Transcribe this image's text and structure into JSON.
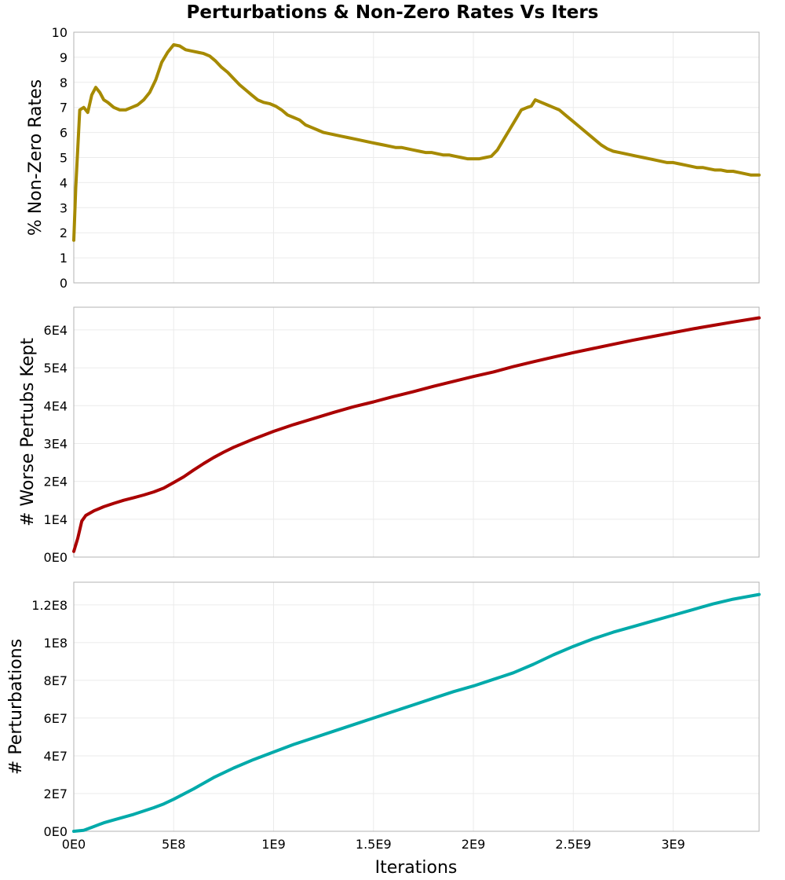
{
  "title": "Perturbations & Non-Zero Rates Vs Iters",
  "xlabel": "Iterations",
  "chart_data": [
    {
      "type": "line",
      "ylabel": "% Non-Zero Rates",
      "xlim": [
        0,
        3430000000
      ],
      "ylim": [
        0,
        10
      ],
      "x_ticks": [
        0,
        500000000,
        1000000000,
        1500000000,
        2000000000,
        2500000000,
        3000000000
      ],
      "y_ticks": [
        0,
        1,
        2,
        3,
        4,
        5,
        6,
        7,
        8,
        9,
        10
      ],
      "y_tick_labels": [
        "0",
        "1",
        "2",
        "3",
        "4",
        "5",
        "6",
        "7",
        "8",
        "9",
        "10"
      ],
      "grid": true,
      "color": "#a68a00",
      "series": [
        {
          "x": [
            0,
            10000000,
            30000000,
            50000000,
            70000000,
            90000000,
            110000000,
            130000000,
            150000000,
            170000000,
            200000000,
            230000000,
            260000000,
            290000000,
            320000000,
            350000000,
            380000000,
            410000000,
            440000000,
            470000000,
            500000000,
            530000000,
            560000000,
            590000000,
            620000000,
            650000000,
            680000000,
            710000000,
            740000000,
            770000000,
            800000000,
            830000000,
            860000000,
            890000000,
            920000000,
            950000000,
            980000000,
            1010000000,
            1040000000,
            1070000000,
            1100000000,
            1130000000,
            1160000000,
            1190000000,
            1220000000,
            1250000000,
            1280000000,
            1310000000,
            1340000000,
            1370000000,
            1400000000,
            1430000000,
            1460000000,
            1490000000,
            1520000000,
            1550000000,
            1580000000,
            1610000000,
            1640000000,
            1670000000,
            1700000000,
            1730000000,
            1760000000,
            1790000000,
            1820000000,
            1850000000,
            1880000000,
            1910000000,
            1940000000,
            1970000000,
            2000000000,
            2030000000,
            2060000000,
            2090000000,
            2120000000,
            2150000000,
            2180000000,
            2210000000,
            2240000000,
            2270000000,
            2290000000,
            2310000000,
            2340000000,
            2370000000,
            2400000000,
            2430000000,
            2460000000,
            2490000000,
            2520000000,
            2550000000,
            2580000000,
            2610000000,
            2640000000,
            2670000000,
            2700000000,
            2730000000,
            2760000000,
            2790000000,
            2820000000,
            2850000000,
            2880000000,
            2910000000,
            2940000000,
            2970000000,
            3000000000,
            3030000000,
            3060000000,
            3090000000,
            3120000000,
            3150000000,
            3180000000,
            3210000000,
            3240000000,
            3270000000,
            3300000000,
            3330000000,
            3360000000,
            3390000000,
            3430000000
          ],
          "y": [
            1.7,
            3.8,
            6.9,
            7.0,
            6.8,
            7.5,
            7.8,
            7.6,
            7.3,
            7.2,
            7.0,
            6.9,
            6.9,
            7.0,
            7.1,
            7.3,
            7.6,
            8.1,
            8.8,
            9.2,
            9.5,
            9.45,
            9.3,
            9.25,
            9.2,
            9.15,
            9.05,
            8.85,
            8.6,
            8.4,
            8.15,
            7.9,
            7.7,
            7.5,
            7.3,
            7.2,
            7.15,
            7.05,
            6.9,
            6.7,
            6.6,
            6.5,
            6.3,
            6.2,
            6.1,
            6.0,
            5.95,
            5.9,
            5.85,
            5.8,
            5.75,
            5.7,
            5.65,
            5.6,
            5.55,
            5.5,
            5.45,
            5.4,
            5.4,
            5.35,
            5.3,
            5.25,
            5.2,
            5.2,
            5.15,
            5.1,
            5.1,
            5.05,
            5.0,
            4.95,
            4.95,
            4.95,
            5.0,
            5.05,
            5.3,
            5.7,
            6.1,
            6.5,
            6.9,
            7.0,
            7.05,
            7.3,
            7.2,
            7.1,
            7.0,
            6.9,
            6.7,
            6.5,
            6.3,
            6.1,
            5.9,
            5.7,
            5.5,
            5.35,
            5.25,
            5.2,
            5.15,
            5.1,
            5.05,
            5.0,
            4.95,
            4.9,
            4.85,
            4.8,
            4.8,
            4.75,
            4.7,
            4.65,
            4.6,
            4.6,
            4.55,
            4.5,
            4.5,
            4.45,
            4.45,
            4.4,
            4.35,
            4.3,
            4.3
          ]
        }
      ]
    },
    {
      "type": "line",
      "ylabel": "# Worse Pertubs Kept",
      "xlim": [
        0,
        3430000000
      ],
      "ylim": [
        0,
        66000
      ],
      "x_ticks": [
        0,
        500000000,
        1000000000,
        1500000000,
        2000000000,
        2500000000,
        3000000000
      ],
      "y_ticks": [
        0,
        10000,
        20000,
        30000,
        40000,
        50000,
        60000
      ],
      "y_tick_labels": [
        "0E0",
        "1E4",
        "2E4",
        "3E4",
        "4E4",
        "5E4",
        "6E4"
      ],
      "grid": true,
      "color": "#aa0000",
      "series": [
        {
          "x": [
            0,
            20000000,
            40000000,
            60000000,
            100000000,
            150000000,
            200000000,
            250000000,
            300000000,
            350000000,
            400000000,
            450000000,
            500000000,
            550000000,
            600000000,
            650000000,
            700000000,
            750000000,
            800000000,
            900000000,
            1000000000,
            1100000000,
            1200000000,
            1300000000,
            1400000000,
            1500000000,
            1600000000,
            1700000000,
            1800000000,
            1900000000,
            2000000000,
            2100000000,
            2200000000,
            2300000000,
            2400000000,
            2500000000,
            2600000000,
            2700000000,
            2800000000,
            2900000000,
            3000000000,
            3100000000,
            3200000000,
            3300000000,
            3430000000
          ],
          "y": [
            1500,
            5000,
            9500,
            11000,
            12200,
            13300,
            14200,
            15000,
            15700,
            16400,
            17200,
            18200,
            19700,
            21200,
            23000,
            24700,
            26300,
            27700,
            29000,
            31200,
            33200,
            35000,
            36600,
            38200,
            39700,
            41000,
            42400,
            43700,
            45100,
            46400,
            47700,
            48900,
            50300,
            51600,
            52800,
            54000,
            55100,
            56200,
            57300,
            58300,
            59300,
            60300,
            61200,
            62100,
            63200
          ]
        }
      ]
    },
    {
      "type": "line",
      "ylabel": "# Perturbations",
      "xlim": [
        0,
        3430000000
      ],
      "ylim": [
        0,
        132000000
      ],
      "x_ticks": [
        0,
        500000000,
        1000000000,
        1500000000,
        2000000000,
        2500000000,
        3000000000
      ],
      "x_tick_labels": [
        "0E0",
        "5E8",
        "1E9",
        "1.5E9",
        "2E9",
        "2.5E9",
        "3E9"
      ],
      "y_ticks": [
        0,
        20000000,
        40000000,
        60000000,
        80000000,
        100000000,
        120000000
      ],
      "y_tick_labels": [
        "0E0",
        "2E7",
        "4E7",
        "6E7",
        "8E7",
        "1E8",
        "1.2E8"
      ],
      "grid": true,
      "color": "#00aaaa",
      "series": [
        {
          "x": [
            0,
            50000000,
            100000000,
            150000000,
            200000000,
            300000000,
            400000000,
            450000000,
            500000000,
            600000000,
            700000000,
            800000000,
            900000000,
            1000000000,
            1100000000,
            1200000000,
            1300000000,
            1400000000,
            1500000000,
            1600000000,
            1700000000,
            1800000000,
            1900000000,
            2000000000,
            2100000000,
            2200000000,
            2300000000,
            2400000000,
            2500000000,
            2600000000,
            2700000000,
            2800000000,
            2900000000,
            3000000000,
            3100000000,
            3200000000,
            3300000000,
            3430000000
          ],
          "y": [
            0,
            500000,
            2500000,
            4500000,
            6000000,
            9000000,
            12500000,
            14500000,
            17000000,
            22500000,
            28500000,
            33500000,
            38000000,
            42000000,
            46000000,
            49500000,
            53000000,
            56500000,
            60000000,
            63500000,
            67000000,
            70500000,
            74000000,
            77000000,
            80500000,
            84000000,
            88500000,
            93500000,
            98000000,
            102000000,
            105500000,
            108500000,
            111500000,
            114500000,
            117500000,
            120500000,
            123000000,
            125500000
          ]
        }
      ]
    }
  ]
}
